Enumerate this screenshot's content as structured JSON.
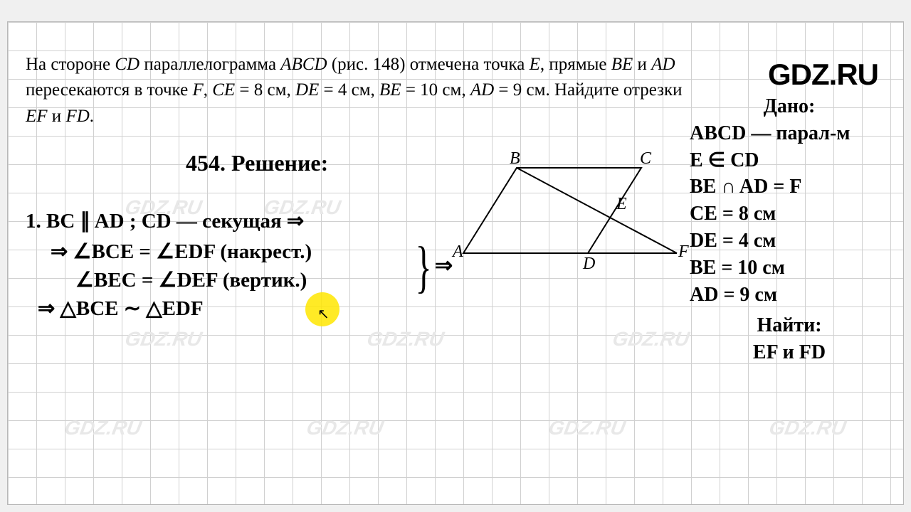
{
  "logo": "GDZ.RU",
  "watermark": "GDZ.RU",
  "problem_html": "На стороне <span class='it'>CD</span> параллелограмма <span class='it'>ABCD</span> (рис. 148) отмечена точка <span class='it'>E</span>, прямые <span class='it'>BE</span> и <span class='it'>AD</span> пересекаются в точке <span class='it'>F</span>, <span class='it'>CE</span> = 8 см, <span class='it'>DE</span> = 4 см, <span class='it'>BE</span> = 10 см, <span class='it'>AD</span> = 9 см. Найдите отрезки <span class='it'>EF</span> и <span class='it'>FD</span>.",
  "solution_title": "454. Решение:",
  "sol_line1": "1.  BC ∥ AD ;  CD — секущая  ⇒",
  "sol_line2": "⇒ ∠BCE = ∠EDF (накрест.)",
  "sol_line3": "∠BEC = ∠DEF (вертик.)",
  "sol_line4": "⇒ △BCE ∼ △EDF",
  "implies": "⇒",
  "given_title": "Дано:",
  "given_lines": [
    "ABCD — парал-м",
    "E ∈ CD",
    "BE ∩ AD = F",
    "CE = 8 см",
    "DE = 4 см",
    "BE = 10 см",
    "AD = 9 см"
  ],
  "find_title": "Найти:",
  "find_line": "EF и FD",
  "diagram": {
    "labels": {
      "A": "A",
      "B": "B",
      "C": "C",
      "D": "D",
      "E": "E",
      "F": "F"
    },
    "stroke": "#000000",
    "stroke_width": 2
  },
  "colors": {
    "grid": "#d0d0d0",
    "bg": "#ffffff",
    "highlight": "#ffe600",
    "text": "#000000"
  }
}
